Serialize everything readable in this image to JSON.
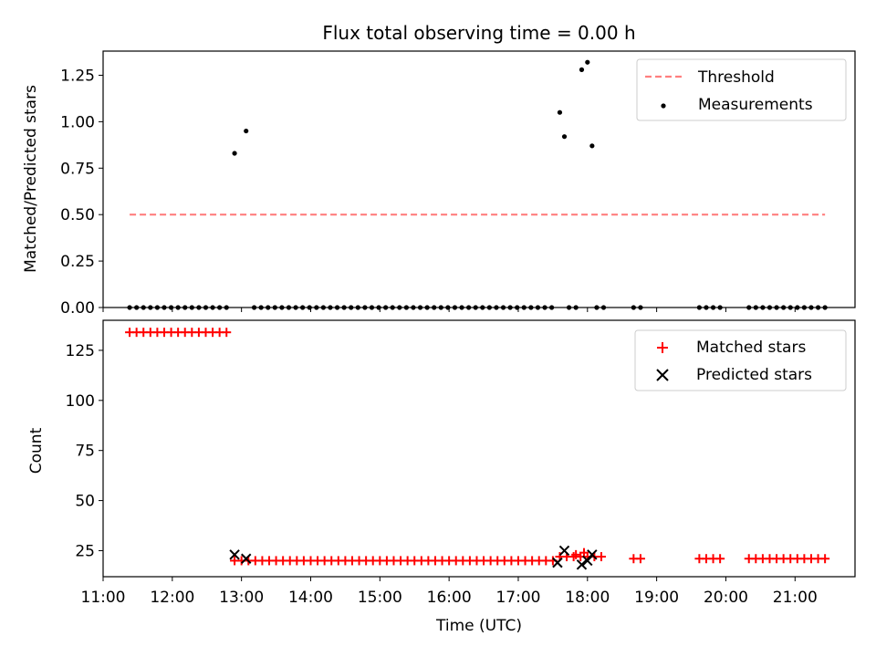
{
  "title": "Flux total observing time = 0.00 h",
  "chart_data": [
    {
      "type": "scatter",
      "ylabel": "Matched/Predicted stars",
      "xlim": [
        "11:00",
        "21:52"
      ],
      "ylim": [
        0,
        1.38
      ],
      "yticks": [
        "0.00",
        "0.25",
        "0.50",
        "0.75",
        "1.00",
        "1.25"
      ],
      "threshold": {
        "name": "Threshold",
        "value": 0.5,
        "x_range": [
          "11:23",
          "21:26"
        ],
        "color": "#ff7f7f",
        "style": "dashed"
      },
      "measurements": {
        "name": "Measurements",
        "color": "#000000",
        "points": [
          {
            "x": "12:54",
            "y": 0.83
          },
          {
            "x": "13:04",
            "y": 0.95
          },
          {
            "x": "17:36",
            "y": 1.05
          },
          {
            "x": "17:40",
            "y": 0.92
          },
          {
            "x": "17:55",
            "y": 1.28
          },
          {
            "x": "18:00",
            "y": 1.32
          },
          {
            "x": "18:04",
            "y": 0.87
          }
        ],
        "zero_runs": [
          {
            "from": "11:23",
            "to": "12:50",
            "step_min": 6
          },
          {
            "from": "13:11",
            "to": "17:30",
            "step_min": 6
          },
          {
            "from": "17:44",
            "to": "17:50",
            "step_min": 6
          },
          {
            "from": "18:08",
            "to": "18:14",
            "step_min": 6
          },
          {
            "from": "18:40",
            "to": "18:46",
            "step_min": 6
          },
          {
            "from": "19:37",
            "to": "19:59",
            "step_min": 6
          },
          {
            "from": "20:20",
            "to": "20:44",
            "step_min": 6
          },
          {
            "from": "20:50",
            "to": "21:26",
            "step_min": 6
          }
        ]
      },
      "legend_position": "top-right"
    },
    {
      "type": "scatter",
      "xlabel": "Time (UTC)",
      "ylabel": "Count",
      "xlim": [
        "11:00",
        "21:52"
      ],
      "xticks": [
        "11:00",
        "12:00",
        "13:00",
        "14:00",
        "15:00",
        "16:00",
        "17:00",
        "18:00",
        "19:00",
        "20:00",
        "21:00"
      ],
      "ylim": [
        12,
        140
      ],
      "yticks": [
        "25",
        "50",
        "75",
        "100",
        "125"
      ],
      "matched": {
        "name": "Matched stars",
        "color": "#ff0000",
        "marker": "plus",
        "runs": [
          {
            "from": "11:23",
            "to": "12:50",
            "step_min": 6,
            "value": 134
          },
          {
            "from": "12:54",
            "to": "17:30",
            "step_min": 6,
            "value": 20
          },
          {
            "from": "17:36",
            "to": "18:14",
            "step_min": 6,
            "value": 22
          },
          {
            "from": "18:40",
            "to": "18:46",
            "step_min": 6,
            "value": 21
          },
          {
            "from": "19:37",
            "to": "19:59",
            "step_min": 6,
            "value": 21
          },
          {
            "from": "20:20",
            "to": "21:26",
            "step_min": 6,
            "value": 21
          }
        ],
        "highlights": [
          {
            "x": "17:50",
            "y": 23
          },
          {
            "x": "17:57",
            "y": 24
          }
        ]
      },
      "predicted": {
        "name": "Predicted stars",
        "color": "#000000",
        "marker": "x",
        "points": [
          {
            "x": "12:54",
            "y": 23
          },
          {
            "x": "13:04",
            "y": 21
          },
          {
            "x": "17:34",
            "y": 19
          },
          {
            "x": "17:40",
            "y": 25
          },
          {
            "x": "17:55",
            "y": 18
          },
          {
            "x": "18:00",
            "y": 20
          },
          {
            "x": "18:04",
            "y": 23
          }
        ]
      },
      "legend_position": "top-right"
    }
  ]
}
